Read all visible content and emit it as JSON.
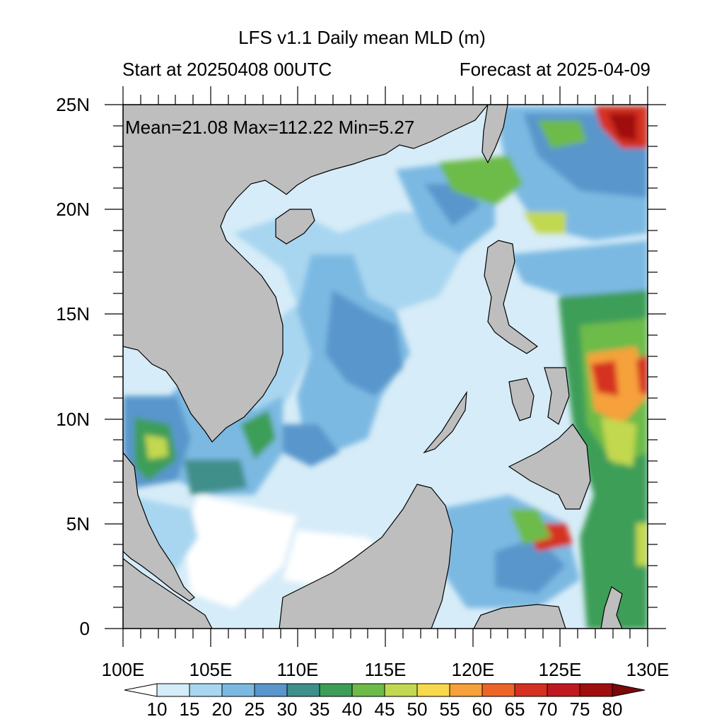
{
  "title": "LFS v1.1 Daily mean MLD (m)",
  "subtitle_left": "Start at 20250408 00UTC",
  "subtitle_right": "Forecast at 2025-04-09",
  "stats": "Mean=21.08  Max=112.22  Min=5.27",
  "lat_labels": [
    "25N",
    "20N",
    "15N",
    "10N",
    "5N",
    "0"
  ],
  "lon_labels": [
    "100E",
    "105E",
    "110E",
    "115E",
    "120E",
    "125E",
    "130E"
  ],
  "colorbar": {
    "labels": [
      "10",
      "15",
      "20",
      "25",
      "30",
      "35",
      "40",
      "45",
      "50",
      "55",
      "60",
      "65",
      "70",
      "75",
      "80"
    ],
    "colors": [
      "#ffffff",
      "#d4ecf8",
      "#a8d6f0",
      "#7cb9e2",
      "#5896cc",
      "#3f8f8a",
      "#3d9e58",
      "#6dbb48",
      "#c2d850",
      "#f8d84c",
      "#f6a13a",
      "#ee6428",
      "#d63020",
      "#c01820",
      "#a00e0e",
      "#7a0808"
    ]
  },
  "colors": {
    "land": "#bebebe",
    "ocean_base": "#d6ecf8"
  }
}
